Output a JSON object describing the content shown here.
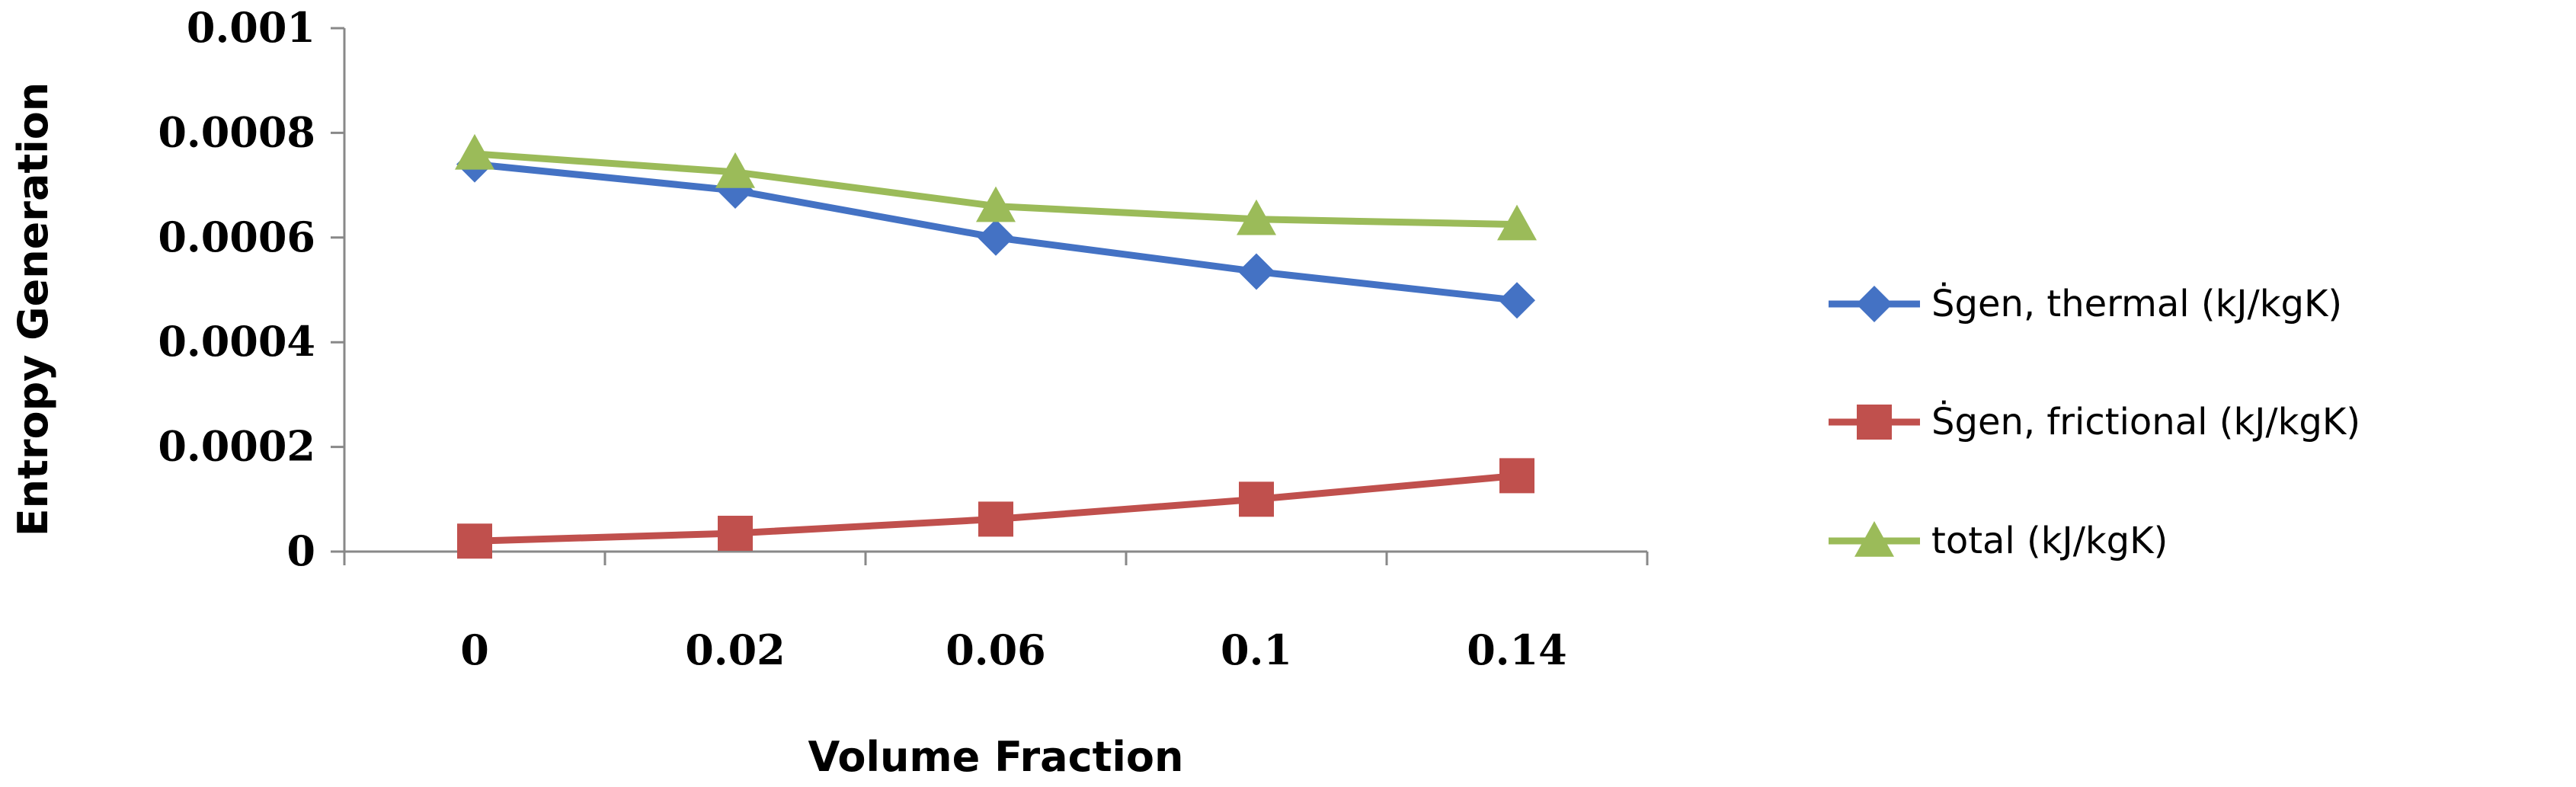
{
  "chart_data": {
    "type": "line",
    "title": "",
    "xlabel": "Volume Fraction",
    "ylabel": "Entropy Generation",
    "categories": [
      "0",
      "0.02",
      "0.06",
      "0.1",
      "0.14"
    ],
    "ylim": [
      0,
      0.001
    ],
    "y_ticks": [
      "0",
      "0.0002",
      "0.0004",
      "0.0006",
      "0.0008",
      "0.001"
    ],
    "grid": false,
    "legend_position": "right",
    "series": [
      {
        "name": "Ṡgen, thermal (kJ/kgK)",
        "values": [
          0.00074,
          0.00069,
          0.0006,
          0.000535,
          0.00048
        ],
        "color": "#4472C4",
        "marker": "diamond"
      },
      {
        "name": "Ṡgen, frictional (kJ/kgK)",
        "values": [
          2e-05,
          3.5e-05,
          6.2e-05,
          0.0001,
          0.000145
        ],
        "color": "#C0504D",
        "marker": "square"
      },
      {
        "name": "total (kJ/kgK)",
        "values": [
          0.00076,
          0.000725,
          0.00066,
          0.000635,
          0.000625
        ],
        "color": "#9BBB59",
        "marker": "triangle"
      }
    ]
  }
}
